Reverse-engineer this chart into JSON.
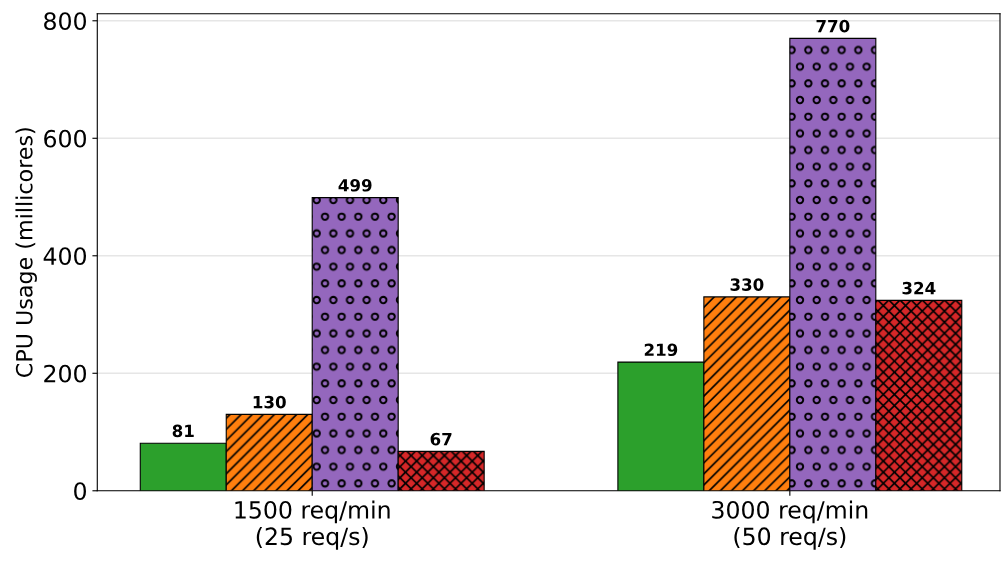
{
  "chart_data": {
    "type": "bar",
    "ylabel": "CPU Usage (millicores)",
    "categories": [
      "1500 req/min\n(25 req/s)",
      "3000 req/min\n(50 req/s)"
    ],
    "series": [
      {
        "color": "#2ca02c",
        "values": [
          81,
          219
        ]
      },
      {
        "color": "#ff7f0e",
        "values": [
          130,
          330
        ]
      },
      {
        "color": "#9467bd",
        "values": [
          499,
          770
        ]
      },
      {
        "color": "#d62728",
        "values": [
          67,
          324
        ]
      }
    ],
    "ylim": [
      0,
      812
    ],
    "yticks": [
      0,
      200,
      400,
      600,
      800
    ],
    "grid": "y",
    "data_labels": true
  }
}
